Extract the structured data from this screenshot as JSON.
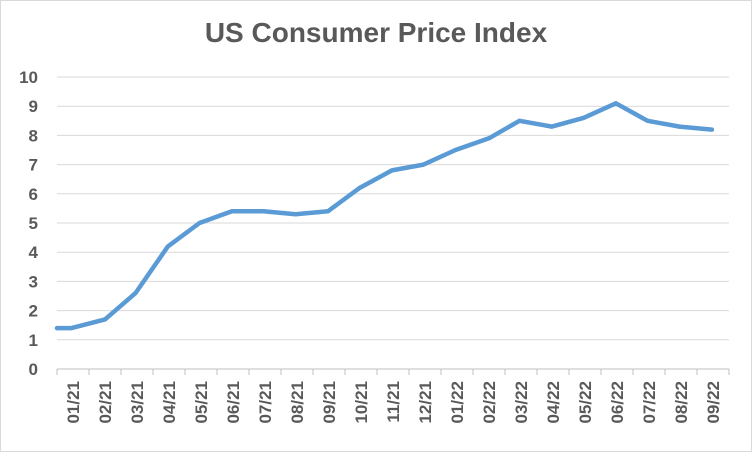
{
  "chart_data": {
    "type": "line",
    "title": "US Consumer Price Index",
    "xlabel": "",
    "ylabel": "",
    "ylim": [
      0,
      10
    ],
    "yticks": [
      "0",
      "1",
      "2",
      "3",
      "4",
      "5",
      "6",
      "7",
      "8",
      "9",
      "10"
    ],
    "categories": [
      "01/21",
      "02/21",
      "03/21",
      "04/21",
      "05/21",
      "06/21",
      "07/21",
      "08/21",
      "09/21",
      "10/21",
      "11/21",
      "12/21",
      "01/22",
      "02/22",
      "03/22",
      "04/22",
      "05/22",
      "06/22",
      "07/22",
      "08/22",
      "09/22"
    ],
    "x": [
      "2021-01-01",
      "2021-01-15",
      "2021-02-15",
      "2021-03-15",
      "2021-04-15",
      "2021-05-15",
      "2021-06-15",
      "2021-07-15",
      "2021-08-15",
      "2021-09-15",
      "2021-10-15",
      "2021-11-15",
      "2021-12-15",
      "2022-01-15",
      "2022-02-15",
      "2022-03-15",
      "2022-04-15",
      "2022-05-15",
      "2022-06-15",
      "2022-07-15",
      "2022-08-15",
      "2022-09-15"
    ],
    "series": [
      {
        "values": [
          1.4,
          1.4,
          1.7,
          2.6,
          4.2,
          5.0,
          5.4,
          5.4,
          5.3,
          5.4,
          6.2,
          6.8,
          7.0,
          7.5,
          7.9,
          8.5,
          8.3,
          8.6,
          9.1,
          8.5,
          8.3,
          8.2
        ],
        "color": "#5b9bd5"
      }
    ],
    "grid": true,
    "gridColor": "#d9d9d9",
    "legend": "none"
  }
}
